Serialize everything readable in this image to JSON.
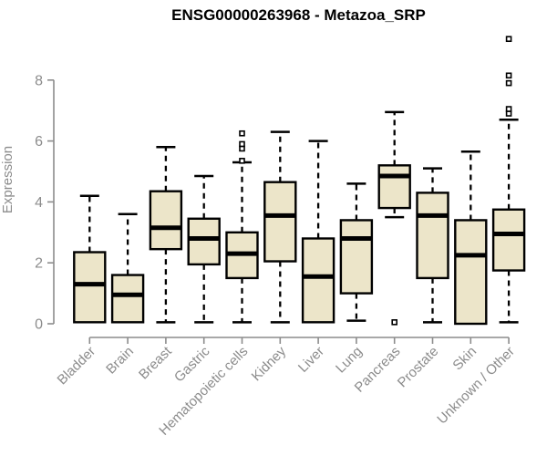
{
  "chart_data": {
    "type": "box",
    "title": "ENSG00000263968 - Metazoa_SRP",
    "ylabel": "Expression",
    "xlabel": "",
    "yticks": [
      0,
      2,
      4,
      6,
      8
    ],
    "ylim": [
      0,
      9.6
    ],
    "grid": false,
    "legend": "none",
    "colors": {
      "box_fill": "#ECE5C9",
      "box_border": "#000000",
      "median": "#000000",
      "axis": "#8c8c8c",
      "tick_text": "#8c8c8c",
      "background": "#ffffff"
    },
    "categories": [
      "Bladder",
      "Brain",
      "Breast",
      "Gastric",
      "Hematopoietic cells",
      "Kidney",
      "Liver",
      "Lung",
      "Pancreas",
      "Prostate",
      "Skin",
      "Unknown / Other"
    ],
    "series": [
      {
        "name": "Bladder",
        "whisker_low": 0.05,
        "q1": 0.05,
        "median": 1.3,
        "q3": 2.35,
        "whisker_high": 4.2,
        "outliers": []
      },
      {
        "name": "Brain",
        "whisker_low": 0.05,
        "q1": 0.05,
        "median": 0.95,
        "q3": 1.6,
        "whisker_high": 3.6,
        "outliers": []
      },
      {
        "name": "Breast",
        "whisker_low": 0.05,
        "q1": 2.45,
        "median": 3.15,
        "q3": 4.35,
        "whisker_high": 5.8,
        "outliers": []
      },
      {
        "name": "Gastric",
        "whisker_low": 0.05,
        "q1": 1.95,
        "median": 2.8,
        "q3": 3.45,
        "whisker_high": 4.85,
        "outliers": []
      },
      {
        "name": "Hematopoietic cells",
        "whisker_low": 0.05,
        "q1": 1.5,
        "median": 2.3,
        "q3": 3.0,
        "whisker_high": 5.3,
        "outliers": [
          5.35,
          5.75,
          5.9,
          6.25
        ]
      },
      {
        "name": "Kidney",
        "whisker_low": 0.05,
        "q1": 2.05,
        "median": 3.55,
        "q3": 4.65,
        "whisker_high": 6.3,
        "outliers": []
      },
      {
        "name": "Liver",
        "whisker_low": 0.05,
        "q1": 0.05,
        "median": 1.55,
        "q3": 2.8,
        "whisker_high": 6.0,
        "outliers": []
      },
      {
        "name": "Lung",
        "whisker_low": 0.1,
        "q1": 1.0,
        "median": 2.8,
        "q3": 3.4,
        "whisker_high": 4.6,
        "outliers": []
      },
      {
        "name": "Pancreas",
        "whisker_low": 3.5,
        "q1": 3.8,
        "median": 4.85,
        "q3": 5.2,
        "whisker_high": 6.95,
        "outliers": [
          0.05
        ]
      },
      {
        "name": "Prostate",
        "whisker_low": 0.05,
        "q1": 1.5,
        "median": 3.55,
        "q3": 4.3,
        "whisker_high": 5.1,
        "outliers": []
      },
      {
        "name": "Skin",
        "whisker_low": 0.0,
        "q1": 0.0,
        "median": 2.25,
        "q3": 3.4,
        "whisker_high": 5.65,
        "outliers": []
      },
      {
        "name": "Unknown / Other",
        "whisker_low": 0.05,
        "q1": 1.75,
        "median": 2.95,
        "q3": 3.75,
        "whisker_high": 6.7,
        "outliers": [
          6.9,
          7.05,
          7.9,
          8.15,
          9.35
        ]
      }
    ]
  }
}
